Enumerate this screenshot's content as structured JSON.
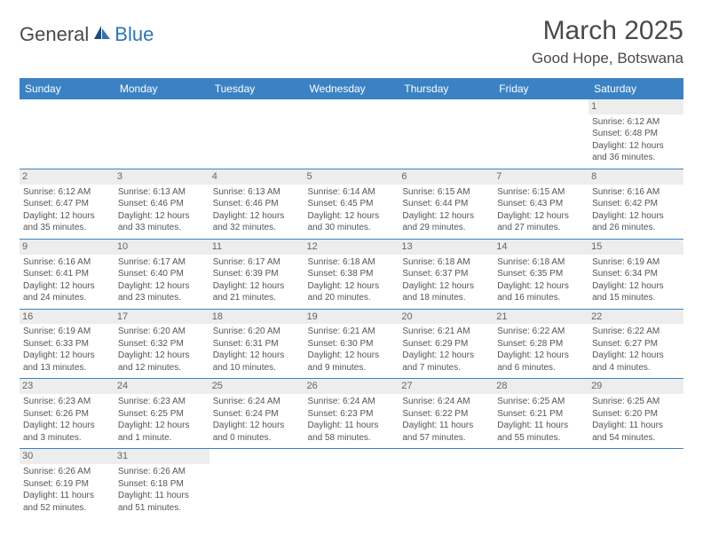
{
  "logo": {
    "text1": "General",
    "text2": "Blue"
  },
  "title": "March 2025",
  "location": "Good Hope, Botswana",
  "colors": {
    "header_bg": "#3b82c4",
    "header_text": "#ffffff",
    "cell_border": "#3b82c4",
    "daynum_bg": "#ededed",
    "body_text": "#555555",
    "logo_blue": "#2e75b6"
  },
  "weekdays": [
    "Sunday",
    "Monday",
    "Tuesday",
    "Wednesday",
    "Thursday",
    "Friday",
    "Saturday"
  ],
  "weeks": [
    [
      null,
      null,
      null,
      null,
      null,
      null,
      {
        "n": "1",
        "sr": "Sunrise: 6:12 AM",
        "ss": "Sunset: 6:48 PM",
        "dl": "Daylight: 12 hours and 36 minutes."
      }
    ],
    [
      {
        "n": "2",
        "sr": "Sunrise: 6:12 AM",
        "ss": "Sunset: 6:47 PM",
        "dl": "Daylight: 12 hours and 35 minutes."
      },
      {
        "n": "3",
        "sr": "Sunrise: 6:13 AM",
        "ss": "Sunset: 6:46 PM",
        "dl": "Daylight: 12 hours and 33 minutes."
      },
      {
        "n": "4",
        "sr": "Sunrise: 6:13 AM",
        "ss": "Sunset: 6:46 PM",
        "dl": "Daylight: 12 hours and 32 minutes."
      },
      {
        "n": "5",
        "sr": "Sunrise: 6:14 AM",
        "ss": "Sunset: 6:45 PM",
        "dl": "Daylight: 12 hours and 30 minutes."
      },
      {
        "n": "6",
        "sr": "Sunrise: 6:15 AM",
        "ss": "Sunset: 6:44 PM",
        "dl": "Daylight: 12 hours and 29 minutes."
      },
      {
        "n": "7",
        "sr": "Sunrise: 6:15 AM",
        "ss": "Sunset: 6:43 PM",
        "dl": "Daylight: 12 hours and 27 minutes."
      },
      {
        "n": "8",
        "sr": "Sunrise: 6:16 AM",
        "ss": "Sunset: 6:42 PM",
        "dl": "Daylight: 12 hours and 26 minutes."
      }
    ],
    [
      {
        "n": "9",
        "sr": "Sunrise: 6:16 AM",
        "ss": "Sunset: 6:41 PM",
        "dl": "Daylight: 12 hours and 24 minutes."
      },
      {
        "n": "10",
        "sr": "Sunrise: 6:17 AM",
        "ss": "Sunset: 6:40 PM",
        "dl": "Daylight: 12 hours and 23 minutes."
      },
      {
        "n": "11",
        "sr": "Sunrise: 6:17 AM",
        "ss": "Sunset: 6:39 PM",
        "dl": "Daylight: 12 hours and 21 minutes."
      },
      {
        "n": "12",
        "sr": "Sunrise: 6:18 AM",
        "ss": "Sunset: 6:38 PM",
        "dl": "Daylight: 12 hours and 20 minutes."
      },
      {
        "n": "13",
        "sr": "Sunrise: 6:18 AM",
        "ss": "Sunset: 6:37 PM",
        "dl": "Daylight: 12 hours and 18 minutes."
      },
      {
        "n": "14",
        "sr": "Sunrise: 6:18 AM",
        "ss": "Sunset: 6:35 PM",
        "dl": "Daylight: 12 hours and 16 minutes."
      },
      {
        "n": "15",
        "sr": "Sunrise: 6:19 AM",
        "ss": "Sunset: 6:34 PM",
        "dl": "Daylight: 12 hours and 15 minutes."
      }
    ],
    [
      {
        "n": "16",
        "sr": "Sunrise: 6:19 AM",
        "ss": "Sunset: 6:33 PM",
        "dl": "Daylight: 12 hours and 13 minutes."
      },
      {
        "n": "17",
        "sr": "Sunrise: 6:20 AM",
        "ss": "Sunset: 6:32 PM",
        "dl": "Daylight: 12 hours and 12 minutes."
      },
      {
        "n": "18",
        "sr": "Sunrise: 6:20 AM",
        "ss": "Sunset: 6:31 PM",
        "dl": "Daylight: 12 hours and 10 minutes."
      },
      {
        "n": "19",
        "sr": "Sunrise: 6:21 AM",
        "ss": "Sunset: 6:30 PM",
        "dl": "Daylight: 12 hours and 9 minutes."
      },
      {
        "n": "20",
        "sr": "Sunrise: 6:21 AM",
        "ss": "Sunset: 6:29 PM",
        "dl": "Daylight: 12 hours and 7 minutes."
      },
      {
        "n": "21",
        "sr": "Sunrise: 6:22 AM",
        "ss": "Sunset: 6:28 PM",
        "dl": "Daylight: 12 hours and 6 minutes."
      },
      {
        "n": "22",
        "sr": "Sunrise: 6:22 AM",
        "ss": "Sunset: 6:27 PM",
        "dl": "Daylight: 12 hours and 4 minutes."
      }
    ],
    [
      {
        "n": "23",
        "sr": "Sunrise: 6:23 AM",
        "ss": "Sunset: 6:26 PM",
        "dl": "Daylight: 12 hours and 3 minutes."
      },
      {
        "n": "24",
        "sr": "Sunrise: 6:23 AM",
        "ss": "Sunset: 6:25 PM",
        "dl": "Daylight: 12 hours and 1 minute."
      },
      {
        "n": "25",
        "sr": "Sunrise: 6:24 AM",
        "ss": "Sunset: 6:24 PM",
        "dl": "Daylight: 12 hours and 0 minutes."
      },
      {
        "n": "26",
        "sr": "Sunrise: 6:24 AM",
        "ss": "Sunset: 6:23 PM",
        "dl": "Daylight: 11 hours and 58 minutes."
      },
      {
        "n": "27",
        "sr": "Sunrise: 6:24 AM",
        "ss": "Sunset: 6:22 PM",
        "dl": "Daylight: 11 hours and 57 minutes."
      },
      {
        "n": "28",
        "sr": "Sunrise: 6:25 AM",
        "ss": "Sunset: 6:21 PM",
        "dl": "Daylight: 11 hours and 55 minutes."
      },
      {
        "n": "29",
        "sr": "Sunrise: 6:25 AM",
        "ss": "Sunset: 6:20 PM",
        "dl": "Daylight: 11 hours and 54 minutes."
      }
    ],
    [
      {
        "n": "30",
        "sr": "Sunrise: 6:26 AM",
        "ss": "Sunset: 6:19 PM",
        "dl": "Daylight: 11 hours and 52 minutes."
      },
      {
        "n": "31",
        "sr": "Sunrise: 6:26 AM",
        "ss": "Sunset: 6:18 PM",
        "dl": "Daylight: 11 hours and 51 minutes."
      },
      null,
      null,
      null,
      null,
      null
    ]
  ]
}
